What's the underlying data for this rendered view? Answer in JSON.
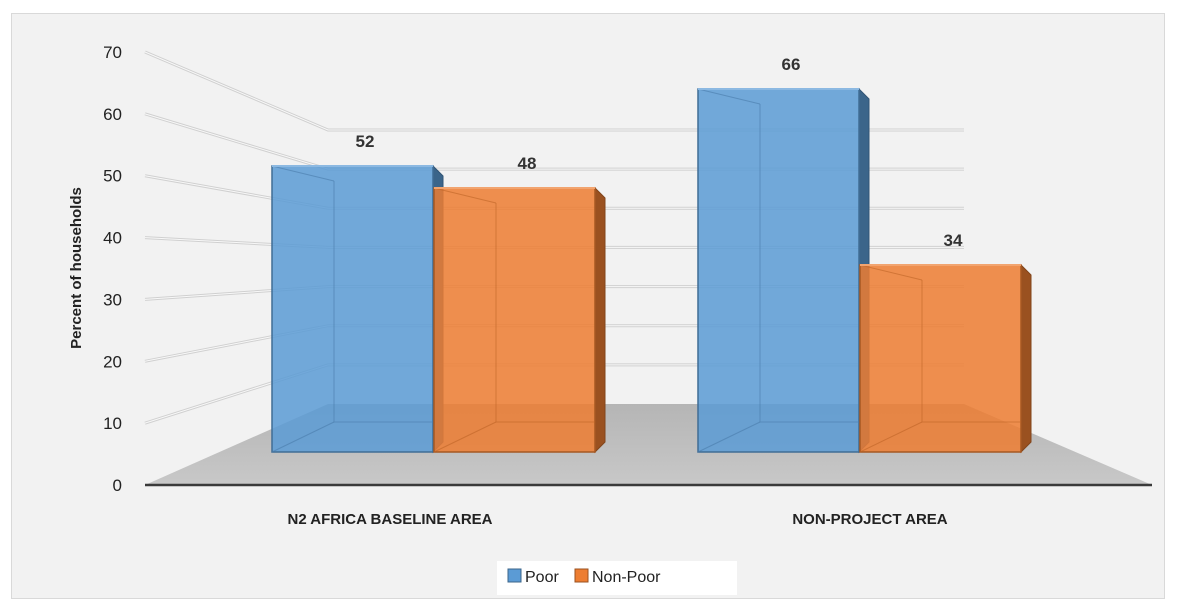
{
  "chart_data": {
    "type": "bar",
    "title": "",
    "xlabel": "",
    "ylabel": "Percent of households",
    "categories": [
      "N2 AFRICA BASELINE AREA",
      "NON-PROJECT AREA"
    ],
    "series": [
      {
        "name": "Poor",
        "values": [
          52,
          66
        ],
        "color": "#5b9bd5"
      },
      {
        "name": "Non-Poor",
        "values": [
          48,
          34
        ],
        "color": "#ed7d31"
      }
    ],
    "ylim": [
      0,
      70
    ],
    "yticks": [
      0,
      10,
      20,
      30,
      40,
      50,
      60,
      70
    ],
    "grid": true,
    "legend_position": "bottom",
    "style": "3d-clustered-column"
  }
}
